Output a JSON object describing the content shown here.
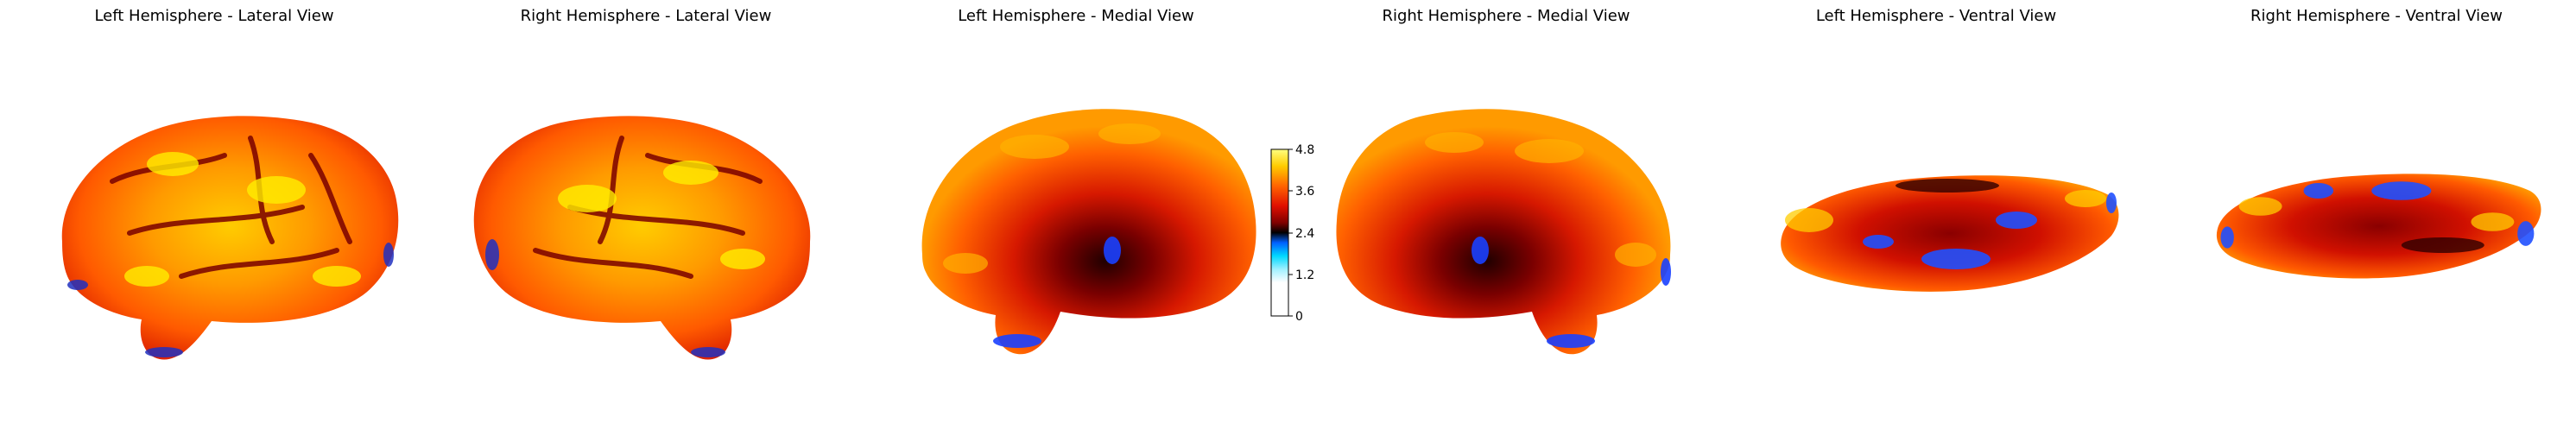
{
  "panels": [
    {
      "title": "Left Hemisphere - Lateral View",
      "view": "lateral",
      "hemisphere": "left"
    },
    {
      "title": "Right Hemisphere - Lateral View",
      "view": "lateral",
      "hemisphere": "right"
    },
    {
      "title": "Left Hemisphere - Medial View",
      "view": "medial",
      "hemisphere": "left"
    },
    {
      "title": "Right Hemisphere - Medial View",
      "view": "medial",
      "hemisphere": "right"
    },
    {
      "title": "Left Hemisphere - Ventral View",
      "view": "ventral",
      "hemisphere": "left"
    },
    {
      "title": "Right Hemisphere - Ventral View",
      "view": "ventral",
      "hemisphere": "right"
    }
  ],
  "colorbar": {
    "ticks": [
      "4.8",
      "3.6",
      "2.4",
      "1.2",
      "0"
    ],
    "min": 0,
    "max": 4.8,
    "colormap": "cold_hot",
    "colors": [
      "#ffffff",
      "#00e5ff",
      "#0050ff",
      "#000060",
      "#000000",
      "#600000",
      "#d00000",
      "#ff6000",
      "#ffcc00",
      "#ffff60"
    ]
  },
  "colors": {
    "background": "#ffffff",
    "dominant_surface": "#ff5a00",
    "highlight": "#ffee00",
    "deep_low": "#2030c0"
  }
}
